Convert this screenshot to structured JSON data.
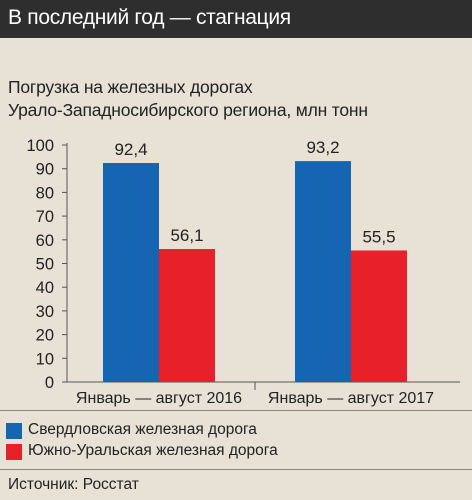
{
  "header": {
    "title": "В последний год — стагнация"
  },
  "chart_data": {
    "type": "bar",
    "title": "Погрузка на железных дорогах Урало-Западносибирского региона, млн тонн",
    "title_lines": [
      "Погрузка на железных дорогах",
      "Урало-Западносибирского региона, млн тонн"
    ],
    "categories": [
      "Январь — август 2016",
      "Январь — август 2017"
    ],
    "series": [
      {
        "name": "Свердловская железная дорога",
        "color": "#1565b3",
        "values": [
          92.4,
          93.2
        ],
        "labels": [
          "92,4",
          "93,2"
        ]
      },
      {
        "name": "Южно-Уральская железная дорога",
        "color": "#e8202a",
        "values": [
          56.1,
          55.5
        ],
        "labels": [
          "56,1",
          "55,5"
        ]
      }
    ],
    "ylim": [
      0,
      100
    ],
    "yticks": [
      0,
      10,
      20,
      30,
      40,
      50,
      60,
      70,
      80,
      90,
      100
    ],
    "grid": false,
    "legend_position": "bottom"
  },
  "footer": {
    "source": "Источник: Росстат"
  }
}
